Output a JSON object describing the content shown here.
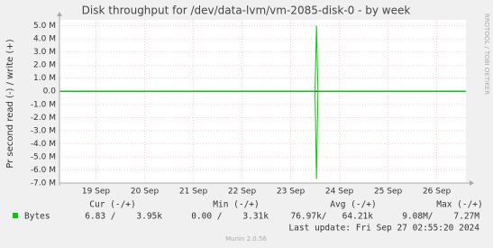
{
  "chart_data": {
    "type": "line",
    "title": "Disk throughput for /dev/data-lvm/vm-2085-disk-0 - by week",
    "y_label": "Pr second read (-) / write (+)",
    "side_label": "RRDTOOL / TOBI OETIKER",
    "xlim": [
      18.25,
      26.6
    ],
    "xticks": [
      {
        "value": 19,
        "label": "19 Sep"
      },
      {
        "value": 20,
        "label": "20 Sep"
      },
      {
        "value": 21,
        "label": "21 Sep"
      },
      {
        "value": 22,
        "label": "22 Sep"
      },
      {
        "value": 23,
        "label": "23 Sep"
      },
      {
        "value": 24,
        "label": "24 Sep"
      },
      {
        "value": 25,
        "label": "25 Sep"
      },
      {
        "value": 26,
        "label": "26 Sep"
      }
    ],
    "ylim": [
      -7000000,
      5450000
    ],
    "yticks": [
      {
        "value": 5000000,
        "label": "5.0 M"
      },
      {
        "value": 4000000,
        "label": "4.0 M"
      },
      {
        "value": 3000000,
        "label": "3.0 M"
      },
      {
        "value": 2000000,
        "label": "2.0 M"
      },
      {
        "value": 1000000,
        "label": "1.0 M"
      },
      {
        "value": 0,
        "label": "0.0"
      },
      {
        "value": -1000000,
        "label": "-1.0 M"
      },
      {
        "value": -2000000,
        "label": "-2.0 M"
      },
      {
        "value": -3000000,
        "label": "-3.0 M"
      },
      {
        "value": -4000000,
        "label": "-4.0 M"
      },
      {
        "value": -5000000,
        "label": "-5.0 M"
      },
      {
        "value": -6000000,
        "label": "-6.0 M"
      },
      {
        "value": -7000000,
        "label": "-7.0 M"
      }
    ],
    "grid": true,
    "x": [
      18.25,
      23.5,
      23.53,
      23.56,
      26.6
    ],
    "series": [
      {
        "name": "Bytes",
        "color": "#00cc00",
        "values": [
          4000,
          4000,
          5000000,
          4000,
          7000
        ]
      },
      {
        "color": "#00cc00",
        "values": [
          -3000,
          -3000,
          -6700000,
          -3000,
          -7000
        ]
      }
    ],
    "legend_table": {
      "headers": [
        "Cur (-/+)",
        "Min (-/+)",
        "Avg (-/+)",
        "Max (-/+)"
      ],
      "cells": [
        "6.83 /    3.95k",
        "0.00 /    3.31k",
        "76.97k/   64.21k",
        "9.08M/    7.27M"
      ]
    },
    "last_update": "Last update: Fri Sep 27 02:55:20 2024",
    "footer": "Munin 2.0.56"
  }
}
